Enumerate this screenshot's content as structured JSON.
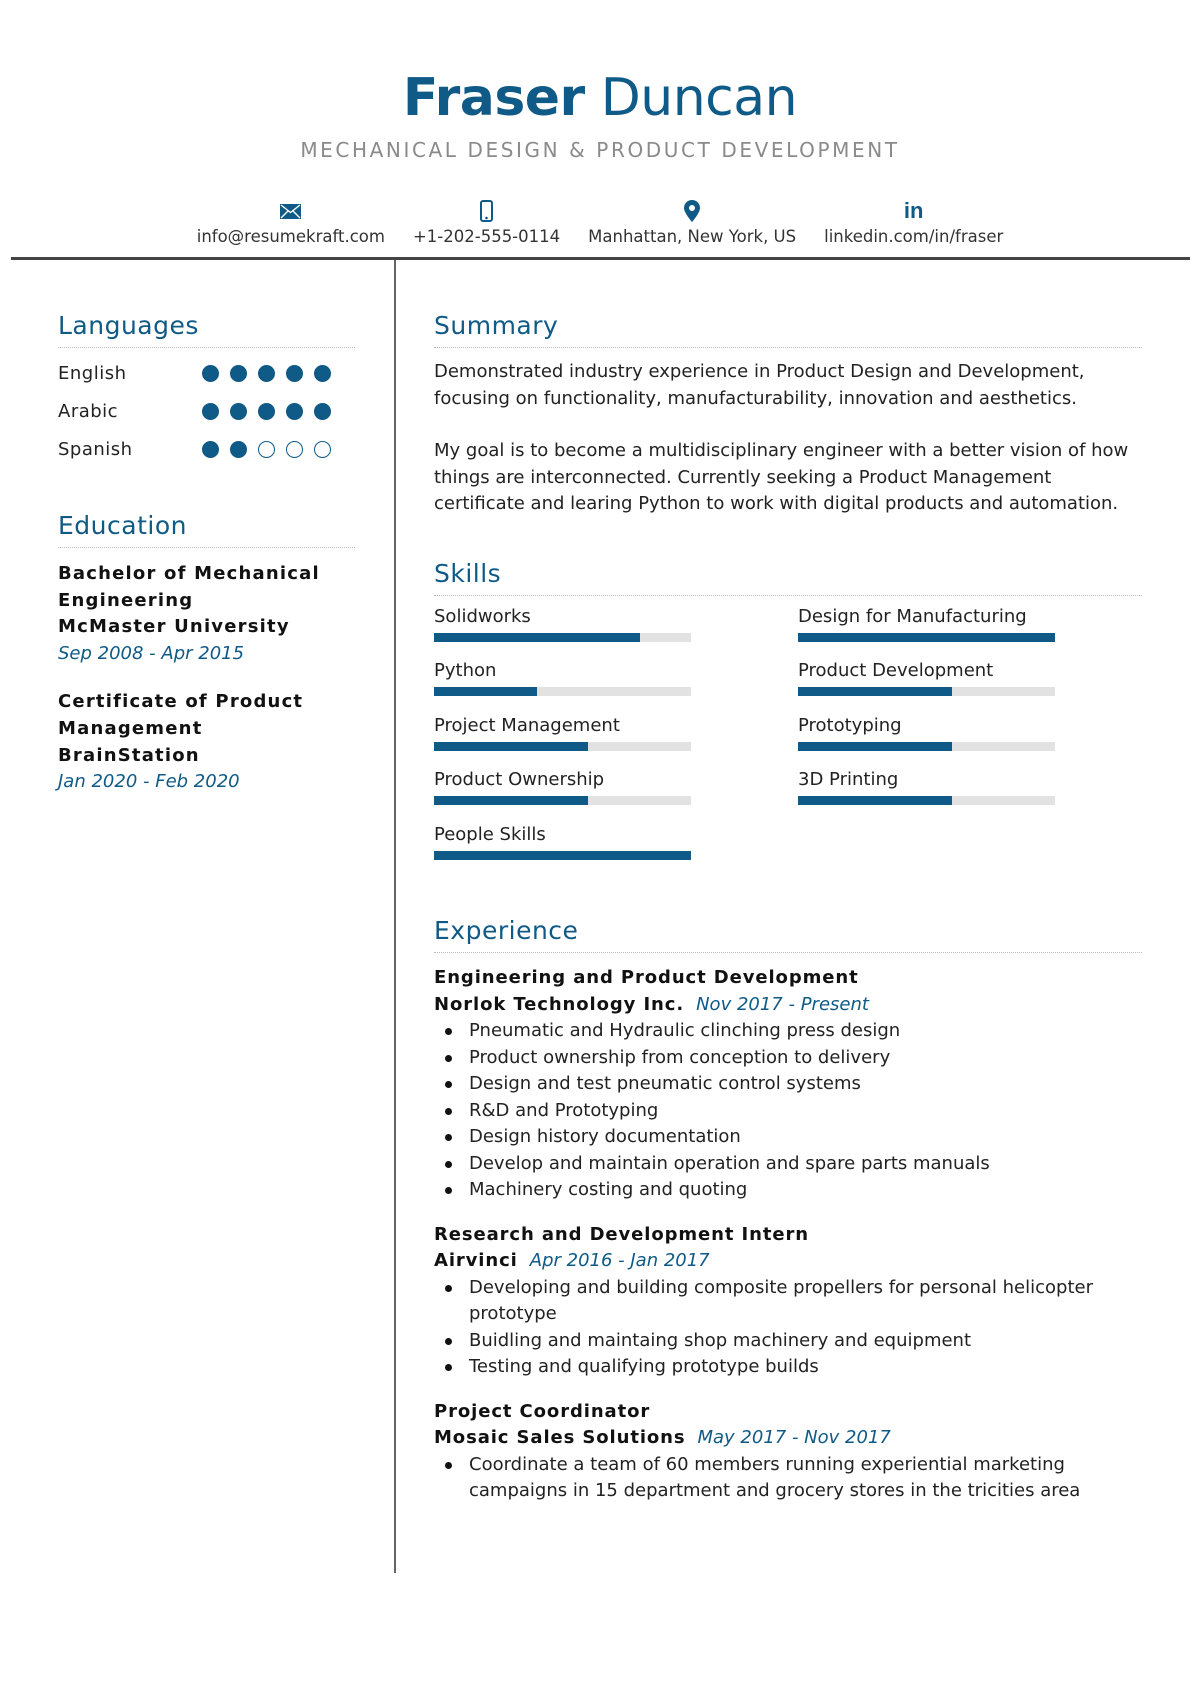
{
  "header": {
    "first_name": "Fraser",
    "last_name": "Duncan",
    "title": "MECHANICAL DESIGN & PRODUCT DEVELOPMENT",
    "contacts": [
      {
        "icon": "envelope-icon",
        "text": "info@resumekraft.com"
      },
      {
        "icon": "mobile-phone-icon",
        "text": "+1-202-555-0114"
      },
      {
        "icon": "map-pin-icon",
        "text": "Manhattan, New York, US"
      },
      {
        "icon": "linkedin-icon",
        "text": "linkedin.com/in/fraser"
      }
    ]
  },
  "colors": {
    "accent": "#0f5a86",
    "subtitle": "#8a8a8a",
    "bar_track": "#e2e2e2"
  },
  "languages": {
    "heading": "Languages",
    "items": [
      {
        "name": "English",
        "level": 5,
        "max": 5
      },
      {
        "name": "Arabic",
        "level": 5,
        "max": 5
      },
      {
        "name": "Spanish",
        "level": 2,
        "max": 5
      }
    ]
  },
  "education": {
    "heading": "Education",
    "items": [
      {
        "degree_line1": "Bachelor of Mechanical",
        "degree_line2": "Engineering",
        "school": "McMaster University",
        "dates": "Sep 2008 - Apr 2015"
      },
      {
        "degree_line1": "Certificate of Product",
        "degree_line2": "Management",
        "school": "BrainStation",
        "dates": "Jan 2020 - Feb 2020"
      }
    ]
  },
  "summary": {
    "heading": "Summary",
    "paragraphs": [
      "Demonstrated industry experience in Product Design and Development, focusing on functionality, manufacturability, innovation and aesthetics.",
      "My goal is to become a multidisciplinary engineer with a better vision of how things are interconnected. Currently seeking a Product Management certificate and learing Python to work with digital products and automation."
    ]
  },
  "skills": {
    "heading": "Skills",
    "items": [
      {
        "name": "Solidworks",
        "level": 0.8
      },
      {
        "name": "Design for Manufacturing",
        "level": 1.0
      },
      {
        "name": "Python",
        "level": 0.4
      },
      {
        "name": "Product Development",
        "level": 0.6
      },
      {
        "name": "Project Management",
        "level": 0.6
      },
      {
        "name": "Prototyping",
        "level": 0.6
      },
      {
        "name": "Product Ownership",
        "level": 0.6
      },
      {
        "name": "3D Printing",
        "level": 0.6
      },
      {
        "name": "People Skills",
        "level": 1.0
      }
    ]
  },
  "experience": {
    "heading": "Experience",
    "jobs": [
      {
        "title": "Engineering and Product Development",
        "company": "Norlok Technology Inc.",
        "dates": "Nov 2017 - Present",
        "bullets": [
          "Pneumatic and Hydraulic clinching press design",
          "Product ownership from conception to delivery",
          "Design and test pneumatic control systems",
          "R&D and Prototyping",
          "Design history documentation",
          "Develop and maintain operation and spare parts manuals",
          "Machinery costing and quoting"
        ]
      },
      {
        "title": "Research and Development Intern",
        "company": "Airvinci",
        "dates": "Apr 2016 - Jan 2017",
        "bullets": [
          "Developing and building composite propellers for personal helicopter prototype",
          "Buidling and maintaing shop machinery and equipment",
          "Testing and qualifying prototype builds"
        ]
      },
      {
        "title": "Project Coordinator",
        "company": "Mosaic Sales Solutions",
        "dates": "May 2017 - Nov 2017",
        "bullets": [
          "Coordinate a team of 60 members running experiential marketing campaigns in 15 department and grocery stores in the tricities area"
        ]
      }
    ]
  }
}
